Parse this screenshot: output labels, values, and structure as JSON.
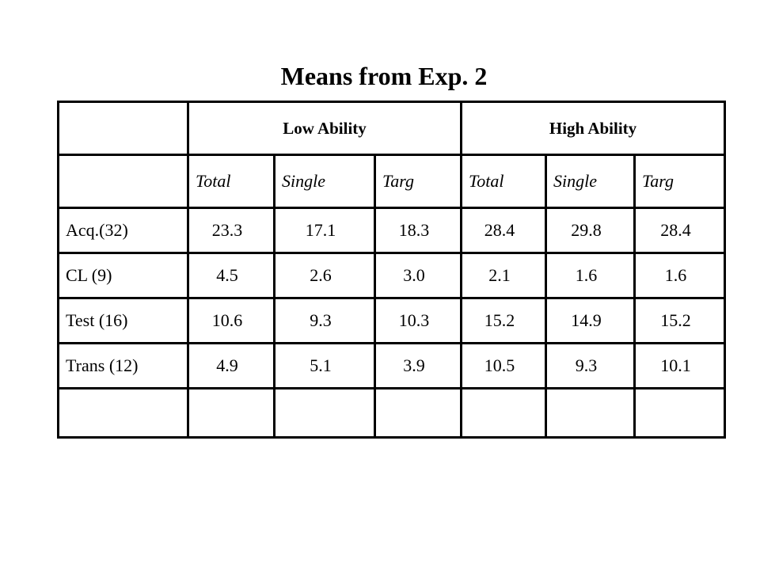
{
  "title": "Means from Exp. 2",
  "table": {
    "group_headers": [
      "Low Ability",
      "High Ability"
    ],
    "subheaders": [
      "Total",
      "Single",
      "Targ",
      "Total",
      "Single",
      "Targ"
    ],
    "rows": [
      {
        "label": "Acq.(32)",
        "values": [
          "23.3",
          "17.1",
          "18.3",
          "28.4",
          "29.8",
          "28.4"
        ]
      },
      {
        "label": "CL (9)",
        "values": [
          "4.5",
          "2.6",
          "3.0",
          "2.1",
          "1.6",
          "1.6"
        ]
      },
      {
        "label": "Test (16)",
        "values": [
          "10.6",
          "9.3",
          "10.3",
          "15.2",
          "14.9",
          "15.2"
        ]
      },
      {
        "label": "Trans (12)",
        "values": [
          "4.9",
          "5.1",
          "3.9",
          "10.5",
          "9.3",
          "10.1"
        ]
      }
    ]
  }
}
